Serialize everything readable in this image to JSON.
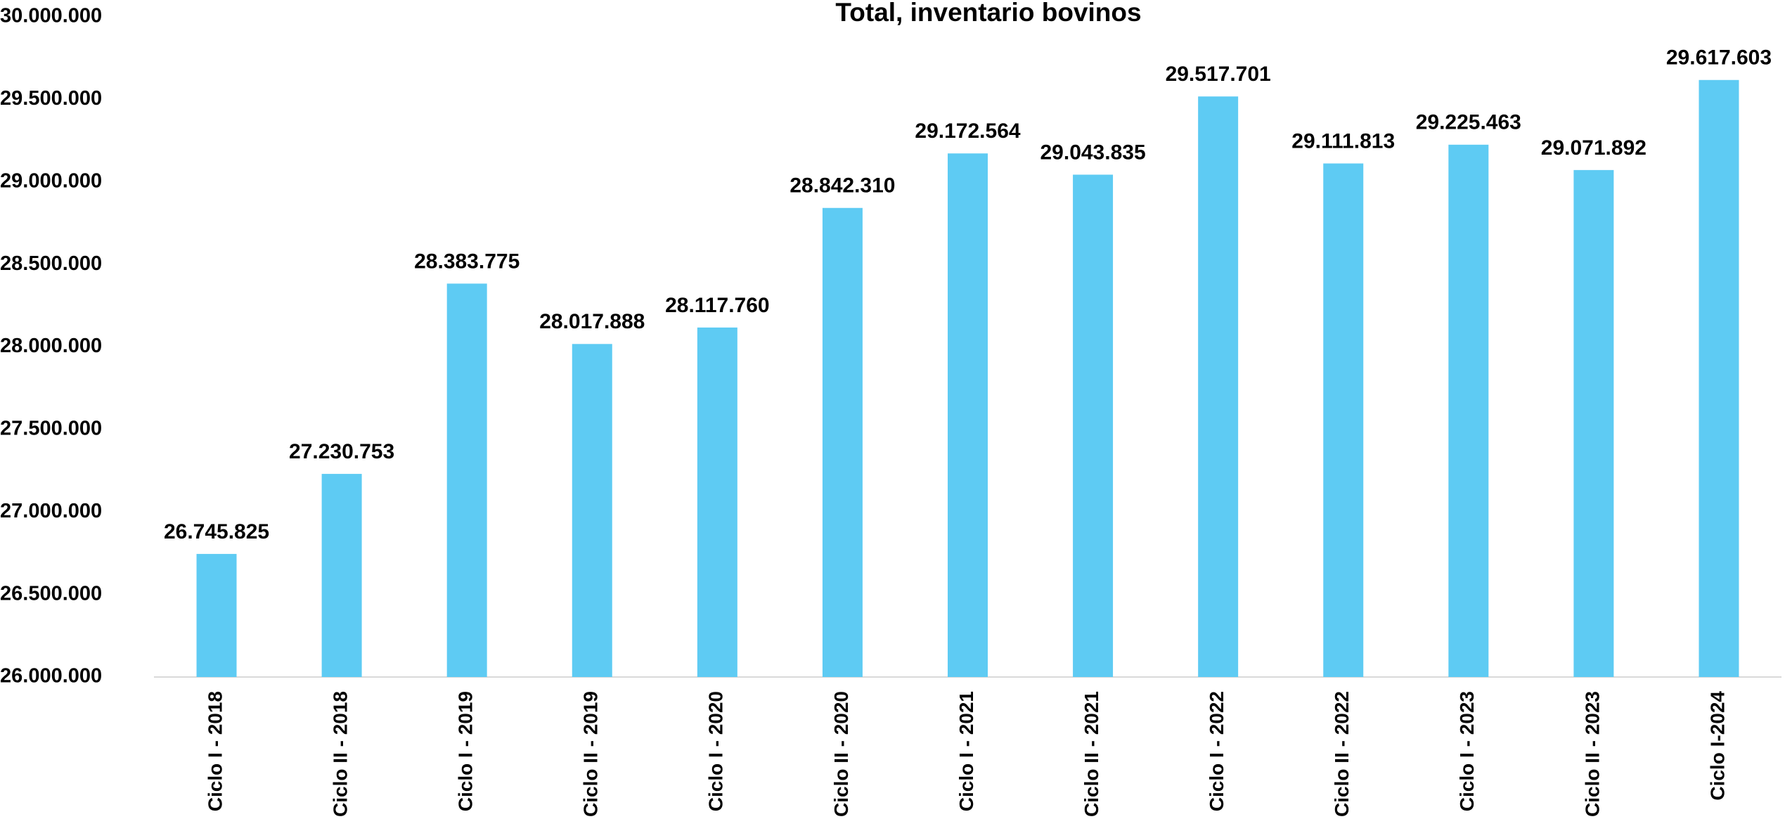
{
  "chart_data": {
    "type": "bar",
    "title": "Total, inventario bovinos",
    "categories": [
      "Ciclo I - 2018",
      "Ciclo II - 2018",
      "Ciclo I - 2019",
      "Ciclo II - 2019",
      "Ciclo I - 2020",
      "Ciclo II - 2020",
      "Ciclo I - 2021",
      "Ciclo II - 2021",
      "Ciclo I - 2022",
      "Ciclo II - 2022",
      "Ciclo I - 2023",
      "Ciclo II - 2023",
      "Ciclo I-2024"
    ],
    "values": [
      26745825,
      27230753,
      28383775,
      28017888,
      28117760,
      28842310,
      29172564,
      29043835,
      29517701,
      29111813,
      29225463,
      29071892,
      29617603
    ],
    "value_labels": [
      "26.745.825",
      "27.230.753",
      "28.383.775",
      "28.017.888",
      "28.117.760",
      "28.842.310",
      "29.172.564",
      "29.043.835",
      "29.517.701",
      "29.111.813",
      "29.225.463",
      "29.071.892",
      "29.617.603"
    ],
    "color": "#5ecbf3",
    "ylim": [
      26000000,
      30000000
    ],
    "yticks": [
      {
        "value": 26000000,
        "label": "26.000.000"
      },
      {
        "value": 26500000,
        "label": "26.500.000"
      },
      {
        "value": 27000000,
        "label": "27.000.000"
      },
      {
        "value": 27500000,
        "label": "27.500.000"
      },
      {
        "value": 28000000,
        "label": "28.000.000"
      },
      {
        "value": 28500000,
        "label": "28.500.000"
      },
      {
        "value": 29000000,
        "label": "29.000.000"
      },
      {
        "value": 29500000,
        "label": "29.500.000"
      },
      {
        "value": 30000000,
        "label": "30.000.000"
      }
    ],
    "grid": false
  }
}
